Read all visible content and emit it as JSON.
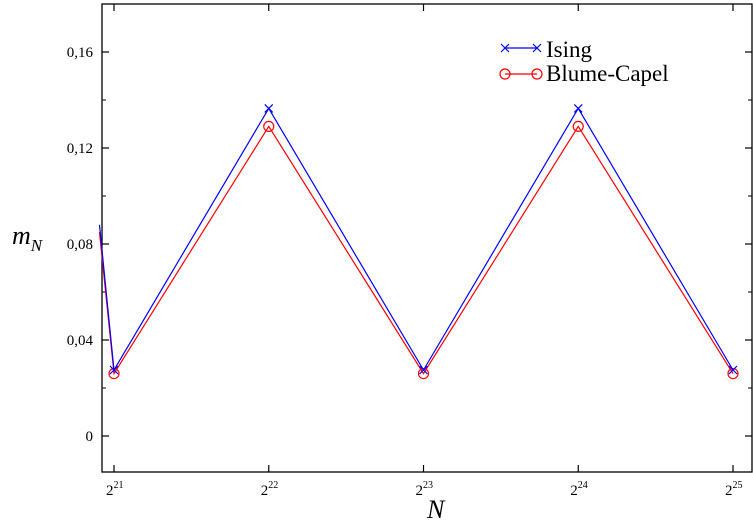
{
  "chart_data": {
    "type": "line",
    "xlabel": "N",
    "ylabel": {
      "base": "m",
      "sub": "N"
    },
    "x_scale": "log2",
    "x": [
      2097152,
      4194304,
      8388608,
      16777216,
      33554432
    ],
    "x_tick_labels": [
      {
        "value": 2097152,
        "base": "2",
        "exp": "21"
      },
      {
        "value": 4194304,
        "base": "2",
        "exp": "22"
      },
      {
        "value": 8388608,
        "base": "2",
        "exp": "23"
      },
      {
        "value": 16777216,
        "base": "2",
        "exp": "24"
      },
      {
        "value": 33554432,
        "base": "2",
        "exp": "25"
      }
    ],
    "y_ticks": [
      {
        "value": 0,
        "label": "0"
      },
      {
        "value": 0.04,
        "label": "0,04"
      },
      {
        "value": 0.08,
        "label": "0,08"
      },
      {
        "value": 0.12,
        "label": "0,12"
      },
      {
        "value": 0.16,
        "label": "0,16"
      }
    ],
    "ylim": [
      -0.015,
      0.18
    ],
    "series": [
      {
        "name": "Ising",
        "color": "#0000ff",
        "marker": "x",
        "points": [
          [
            1965000,
            0.088
          ],
          [
            2097152,
            0.0275
          ],
          [
            4194304,
            0.1365
          ],
          [
            8388608,
            0.0275
          ],
          [
            16777216,
            0.1365
          ],
          [
            33554432,
            0.0275
          ]
        ]
      },
      {
        "name": "Blume-Capel",
        "color": "#ff0000",
        "marker": "circle",
        "points": [
          [
            1965000,
            0.085
          ],
          [
            2097152,
            0.026
          ],
          [
            4194304,
            0.129
          ],
          [
            8388608,
            0.026
          ],
          [
            16777216,
            0.129
          ],
          [
            33554432,
            0.026
          ]
        ]
      }
    ],
    "legend": [
      "Ising",
      "Blume-Capel"
    ],
    "legend_position": "top-right",
    "grid": false
  }
}
